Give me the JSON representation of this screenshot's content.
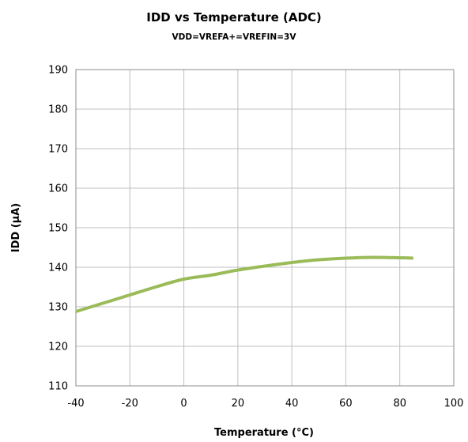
{
  "chart_data": {
    "type": "line",
    "title": "IDD vs Temperature (ADC)",
    "subtitle": "VDD=VREFA+=VREFIN=3V",
    "xlabel": "Temperature (°C)",
    "ylabel": "IDD (µA)",
    "xlim": [
      -40,
      100
    ],
    "ylim": [
      110,
      190
    ],
    "x_ticks": [
      -40,
      -20,
      0,
      20,
      40,
      60,
      80,
      100
    ],
    "y_ticks": [
      110,
      120,
      130,
      140,
      150,
      160,
      170,
      180,
      190
    ],
    "grid": true,
    "legend": "none",
    "series": [
      {
        "color": "#9bbb59",
        "x": [
          -40,
          -30,
          -20,
          -10,
          0,
          10,
          20,
          30,
          40,
          50,
          60,
          70,
          80,
          85
        ],
        "y": [
          128.8,
          130.9,
          133.0,
          135.1,
          137.0,
          138.0,
          139.3,
          140.3,
          141.2,
          141.9,
          142.3,
          142.5,
          142.4,
          142.3
        ]
      }
    ]
  }
}
